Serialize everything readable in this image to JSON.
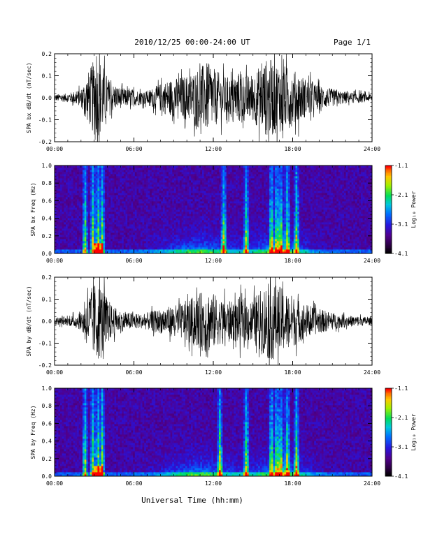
{
  "header": {
    "title": "2010/12/25  00:00-24:00 UT",
    "page": "Page 1/1"
  },
  "xlabel": "Universal Time (hh:mm)",
  "chart_data": [
    {
      "type": "line",
      "ylabel": "SPA bx dB/dt (nT/sec)",
      "xlim": [
        0,
        24
      ],
      "ylim": [
        -0.2,
        0.2
      ],
      "xticks": [
        "00:00",
        "06:00",
        "12:00",
        "18:00",
        "24:00"
      ],
      "yticks": [
        "-0.2",
        "-0.1",
        "0.0",
        "0.1",
        "0.2"
      ],
      "envelope": {
        "x_hours": [
          0,
          1,
          2,
          2.5,
          3,
          3.5,
          4,
          4.5,
          5,
          5.5,
          6,
          6.5,
          7,
          7.5,
          8,
          8.5,
          9,
          9.5,
          10,
          10.5,
          11,
          11.5,
          12,
          12.5,
          13,
          13.5,
          14,
          14.5,
          15,
          15.5,
          16,
          16.5,
          17,
          17.5,
          18,
          18.5,
          19,
          19.5,
          20,
          20.5,
          21,
          21.5,
          22,
          22.5,
          23,
          23.5,
          24
        ],
        "amplitude": [
          0.02,
          0.025,
          0.05,
          0.14,
          0.22,
          0.22,
          0.12,
          0.07,
          0.06,
          0.05,
          0.05,
          0.04,
          0.04,
          0.06,
          0.08,
          0.1,
          0.11,
          0.12,
          0.13,
          0.15,
          0.18,
          0.2,
          0.17,
          0.14,
          0.12,
          0.12,
          0.15,
          0.13,
          0.14,
          0.18,
          0.22,
          0.22,
          0.2,
          0.18,
          0.16,
          0.14,
          0.11,
          0.09,
          0.07,
          0.06,
          0.05,
          0.04,
          0.035,
          0.03,
          0.03,
          0.025,
          0.02
        ]
      }
    },
    {
      "type": "heatmap",
      "ylabel": "SPA bx Freq (Hz)",
      "xlim": [
        0,
        24
      ],
      "ylim": [
        0.0,
        1.0
      ],
      "xticks": [
        "00:00",
        "06:00",
        "12:00",
        "18:00",
        "24:00"
      ],
      "yticks": [
        "0.0",
        "0.2",
        "0.4",
        "0.6",
        "0.8",
        "1.0"
      ],
      "colorbar": {
        "label": "Log₁₀ Power",
        "range": [
          -4.1,
          -1.1
        ],
        "ticks": [
          "-1.1",
          "-2.1",
          "-3.1",
          "-4.1"
        ]
      },
      "bright_bands_hours": [
        2.3,
        2.9,
        3.3,
        3.6,
        12.8,
        14.5,
        16.4,
        16.8,
        17.1,
        17.6,
        18.3
      ]
    },
    {
      "type": "line",
      "ylabel": "SPA by dB/dt (nT/sec)",
      "xlim": [
        0,
        24
      ],
      "ylim": [
        -0.2,
        0.2
      ],
      "xticks": [
        "00:00",
        "06:00",
        "12:00",
        "18:00",
        "24:00"
      ],
      "yticks": [
        "-0.2",
        "-0.1",
        "0.0",
        "0.1",
        "0.2"
      ],
      "envelope": {
        "x_hours": [
          0,
          1,
          2,
          2.5,
          3,
          3.5,
          4,
          4.5,
          5,
          5.5,
          6,
          6.5,
          7,
          7.5,
          8,
          8.5,
          9,
          9.5,
          10,
          10.5,
          11,
          11.5,
          12,
          12.5,
          13,
          13.5,
          14,
          14.5,
          15,
          15.5,
          16,
          16.5,
          17,
          17.5,
          18,
          18.5,
          19,
          19.5,
          20,
          20.5,
          21,
          21.5,
          22,
          22.5,
          23,
          23.5,
          24
        ],
        "amplitude": [
          0.02,
          0.025,
          0.05,
          0.15,
          0.22,
          0.22,
          0.13,
          0.08,
          0.06,
          0.05,
          0.05,
          0.04,
          0.05,
          0.06,
          0.07,
          0.08,
          0.09,
          0.1,
          0.12,
          0.14,
          0.16,
          0.19,
          0.16,
          0.13,
          0.12,
          0.11,
          0.14,
          0.12,
          0.13,
          0.17,
          0.22,
          0.22,
          0.2,
          0.17,
          0.15,
          0.12,
          0.1,
          0.08,
          0.07,
          0.06,
          0.05,
          0.04,
          0.035,
          0.03,
          0.03,
          0.025,
          0.02
        ]
      }
    },
    {
      "type": "heatmap",
      "ylabel": "SPA by Freq (Hz)",
      "xlim": [
        0,
        24
      ],
      "ylim": [
        0.0,
        1.0
      ],
      "xticks": [
        "00:00",
        "06:00",
        "12:00",
        "18:00",
        "24:00"
      ],
      "yticks": [
        "0.0",
        "0.2",
        "0.4",
        "0.6",
        "0.8",
        "1.0"
      ],
      "colorbar": {
        "label": "Log₁₀ Power",
        "range": [
          -4.1,
          -1.1
        ],
        "ticks": [
          "-1.1",
          "-2.1",
          "-3.1",
          "-4.1"
        ]
      },
      "bright_bands_hours": [
        2.3,
        2.9,
        3.3,
        3.6,
        12.5,
        14.5,
        16.4,
        16.8,
        17.1,
        17.6,
        18.3
      ]
    }
  ]
}
